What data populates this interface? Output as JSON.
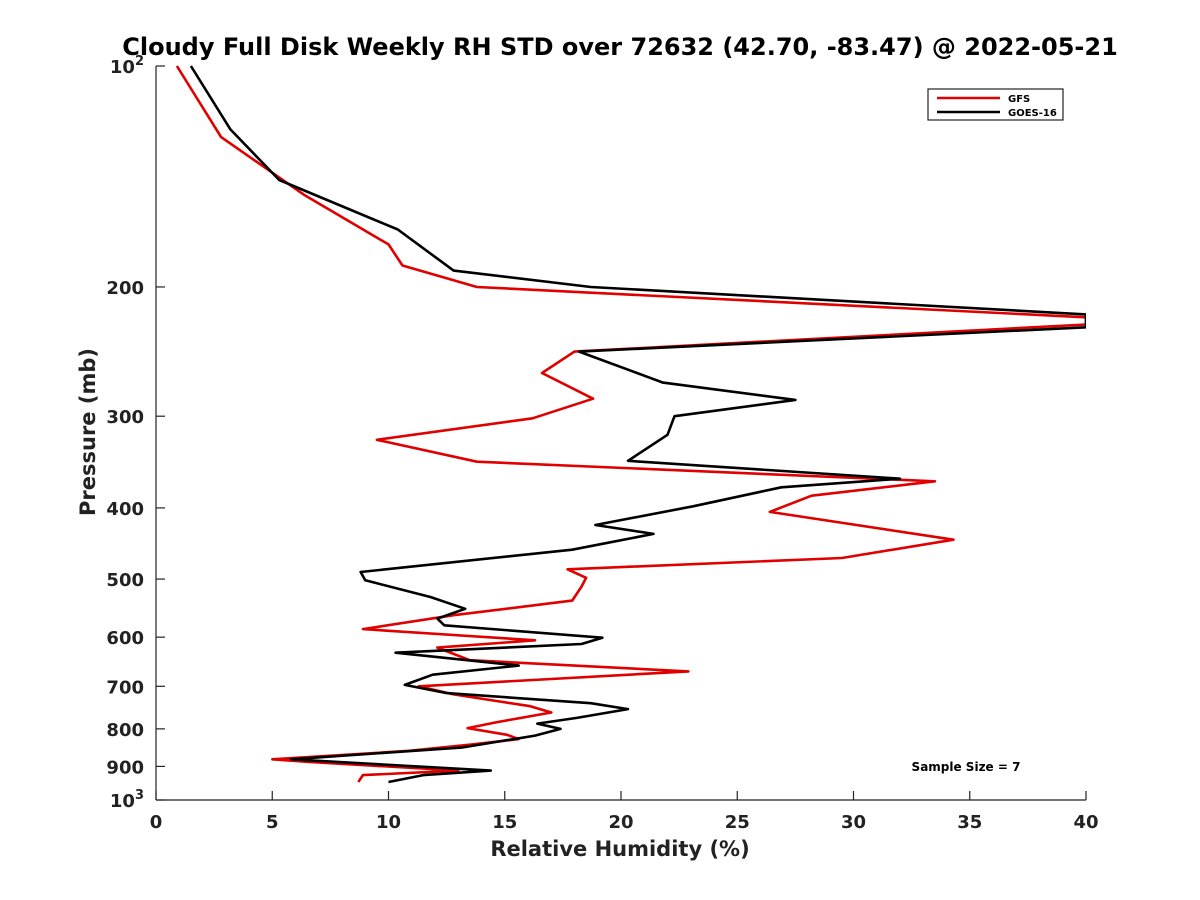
{
  "chart_data": {
    "type": "line",
    "title": "Cloudy Full Disk Weekly RH STD over 72632 (42.70, -83.47) @ 2022-05-21",
    "xlabel": "Relative Humidity (%)",
    "ylabel": "Pressure (mb)",
    "xlim": [
      0,
      40
    ],
    "ylim": [
      100,
      1000
    ],
    "y_scale": "log",
    "y_reversed": true,
    "x_ticks": [
      "0",
      "5",
      "10",
      "15",
      "20",
      "25",
      "30",
      "35",
      "40"
    ],
    "y_ticks": [
      {
        "value": 100,
        "base": "10",
        "exp": "2"
      },
      {
        "value": 200,
        "label": "200"
      },
      {
        "value": 300,
        "label": "300"
      },
      {
        "value": 400,
        "label": "400"
      },
      {
        "value": 500,
        "label": "500"
      },
      {
        "value": 600,
        "label": "600"
      },
      {
        "value": 700,
        "label": "700"
      },
      {
        "value": 800,
        "label": "800"
      },
      {
        "value": 900,
        "label": "900"
      },
      {
        "value": 1000,
        "base": "10",
        "exp": "3"
      }
    ],
    "grid": false,
    "legend_position": "top-right",
    "annotation": "Sample Size = 7",
    "series": [
      {
        "name": "GFS",
        "color": "#e00000",
        "points": [
          [
            0.9,
            100
          ],
          [
            2.8,
            125
          ],
          [
            6.4,
            150
          ],
          [
            10.0,
            175
          ],
          [
            10.6,
            187
          ],
          [
            13.8,
            200
          ],
          [
            40.0,
            220
          ],
          [
            40.0,
            225
          ],
          [
            18.0,
            245
          ],
          [
            16.6,
            262
          ],
          [
            18.8,
            284
          ],
          [
            16.2,
            302
          ],
          [
            9.5,
            323
          ],
          [
            13.8,
            346
          ],
          [
            33.5,
            368
          ],
          [
            28.2,
            385
          ],
          [
            26.4,
            405
          ],
          [
            34.3,
            442
          ],
          [
            29.5,
            468
          ],
          [
            17.7,
            485
          ],
          [
            18.5,
            498
          ],
          [
            18.3,
            512
          ],
          [
            17.9,
            535
          ],
          [
            12.8,
            560
          ],
          [
            8.9,
            585
          ],
          [
            16.3,
            606
          ],
          [
            12.1,
            620
          ],
          [
            13.5,
            645
          ],
          [
            22.9,
            668
          ],
          [
            11.3,
            700
          ],
          [
            12.8,
            718
          ],
          [
            16.1,
            745
          ],
          [
            17.0,
            760
          ],
          [
            14.7,
            783
          ],
          [
            13.4,
            798
          ],
          [
            15.1,
            815
          ],
          [
            15.6,
            826
          ],
          [
            13.6,
            840
          ],
          [
            10.9,
            857
          ],
          [
            5.0,
            880
          ],
          [
            6.5,
            887
          ],
          [
            13.0,
            912
          ],
          [
            8.9,
            925
          ],
          [
            8.7,
            945
          ]
        ]
      },
      {
        "name": "GOES-16",
        "color": "#000000",
        "points": [
          [
            1.5,
            100
          ],
          [
            3.2,
            122
          ],
          [
            5.3,
            143
          ],
          [
            10.4,
            167
          ],
          [
            12.8,
            190
          ],
          [
            18.7,
            200
          ],
          [
            40.0,
            218
          ],
          [
            40.0,
            227
          ],
          [
            18.2,
            245
          ],
          [
            21.8,
            270
          ],
          [
            27.5,
            285
          ],
          [
            22.3,
            300
          ],
          [
            22.0,
            318
          ],
          [
            20.3,
            345
          ],
          [
            32.0,
            365
          ],
          [
            26.9,
            375
          ],
          [
            23.1,
            398
          ],
          [
            18.9,
            422
          ],
          [
            21.4,
            434
          ],
          [
            17.9,
            456
          ],
          [
            8.8,
            489
          ],
          [
            9.0,
            502
          ],
          [
            11.8,
            529
          ],
          [
            13.3,
            549
          ],
          [
            12.1,
            566
          ],
          [
            12.4,
            578
          ],
          [
            19.2,
            601
          ],
          [
            18.3,
            613
          ],
          [
            10.3,
            630
          ],
          [
            15.6,
            656
          ],
          [
            11.9,
            675
          ],
          [
            10.7,
            697
          ],
          [
            12.5,
            715
          ],
          [
            18.7,
            738
          ],
          [
            20.3,
            752
          ],
          [
            18.1,
            773
          ],
          [
            16.4,
            787
          ],
          [
            17.4,
            800
          ],
          [
            16.3,
            817
          ],
          [
            13.2,
            848
          ],
          [
            5.8,
            880
          ],
          [
            14.4,
            912
          ],
          [
            11.5,
            925
          ],
          [
            10.0,
            945
          ]
        ]
      }
    ]
  }
}
